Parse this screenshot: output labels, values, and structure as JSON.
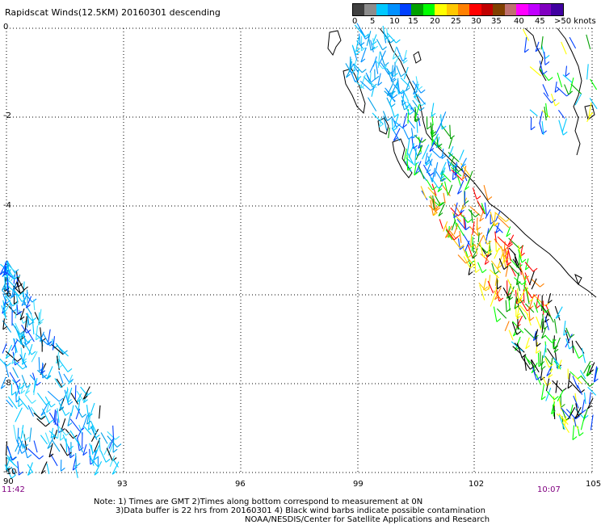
{
  "title": "Rapidscat Winds(12.5KM) 20160301 descending",
  "legend": {
    "colors": [
      "#404040",
      "#8c8c8c",
      "#00c8ff",
      "#0090ff",
      "#0040ff",
      "#00a000",
      "#00ff00",
      "#ffff00",
      "#ffc800",
      "#ff8000",
      "#ff0000",
      "#c00000",
      "#804000",
      "#c07070",
      "#ff00ff",
      "#c000ff",
      "#8000c0",
      "#4000a0"
    ],
    "ticks": [
      "0",
      "5",
      "10",
      "15",
      "20",
      "25",
      "30",
      "35",
      "40",
      "45",
      ">50 knots"
    ]
  },
  "axes": {
    "y_labels": [
      "0",
      "-2",
      "-4",
      "-6",
      "-8",
      "-10"
    ],
    "x_labels": [
      "90",
      "93",
      "96",
      "99",
      "102",
      "105"
    ]
  },
  "times": {
    "left": "11:42",
    "right": "10:07"
  },
  "notes": [
    "Note: 1) Times are GMT 2)Times along bottom correspond to measurement at 0N",
    "3)Data buffer is 22 hrs from 20160301 4) Black wind barbs indicate possible contamination",
    "NOAA/NESDIS/Center for Satellite Applications and Research"
  ]
}
